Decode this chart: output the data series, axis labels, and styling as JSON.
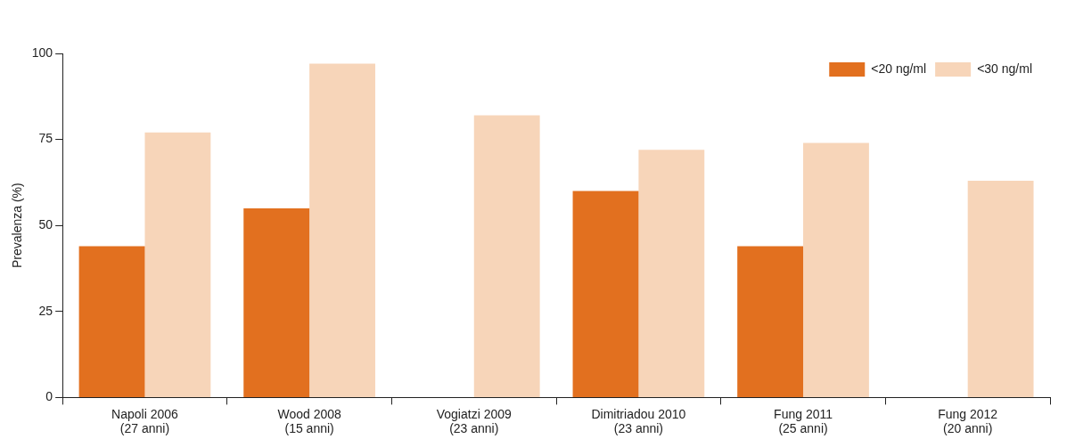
{
  "chart_data": {
    "type": "bar",
    "ylabel": "Prevalenza (%)",
    "categories": [
      "Napoli 2006\n(27 anni)",
      "Wood 2008\n(15 anni)",
      "Vogiatzi 2009\n(23 anni)",
      "Dimitriadou 2010\n(23 anni)",
      "Fung 2011\n(25 anni)",
      "Fung 2012\n(20 anni)"
    ],
    "series": [
      {
        "name": "<20 ng/ml",
        "color": "#e2701f",
        "values": [
          44,
          55,
          null,
          60,
          44,
          null
        ]
      },
      {
        "name": "<30 ng/ml",
        "color": "#f7d5b9",
        "values": [
          77,
          97,
          82,
          72,
          74,
          63
        ]
      }
    ],
    "ylim": [
      0,
      100
    ],
    "yticks": [
      0,
      25,
      50,
      75,
      100
    ],
    "grid": false,
    "legend": "top right"
  }
}
